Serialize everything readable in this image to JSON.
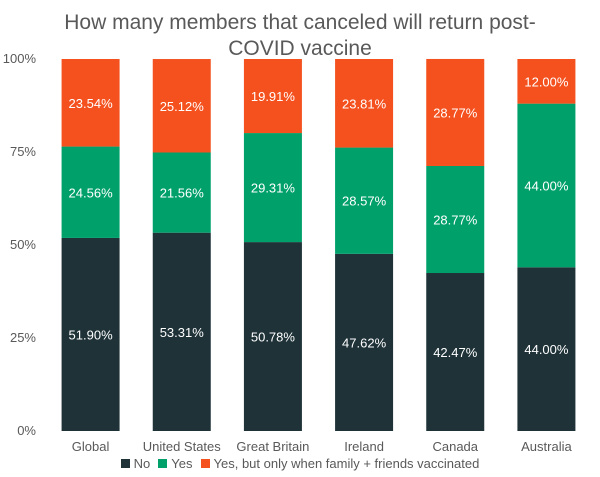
{
  "chart_data": {
    "type": "bar",
    "stacked": true,
    "title_lines": [
      "How many members that canceled will return post-",
      "COVID vaccine"
    ],
    "categories": [
      "Global",
      "United States",
      "Great Britain",
      "Ireland",
      "Canada",
      "Australia"
    ],
    "ylim": [
      0,
      100
    ],
    "yticks": [
      0,
      25,
      50,
      75,
      100
    ],
    "ytick_labels": [
      "0%",
      "25%",
      "50%",
      "75%",
      "100%"
    ],
    "grid": false,
    "legend_position": "bottom",
    "series": [
      {
        "name": "No",
        "color": "#1e3238",
        "values": [
          51.9,
          53.31,
          50.78,
          47.62,
          42.47,
          44.0
        ],
        "labels": [
          "51.90%",
          "53.31%",
          "50.78%",
          "47.62%",
          "42.47%",
          "44.00%"
        ]
      },
      {
        "name": "Yes",
        "color": "#00a06b",
        "values": [
          24.56,
          21.56,
          29.31,
          28.57,
          28.77,
          44.0
        ],
        "labels": [
          "24.56%",
          "21.56%",
          "29.31%",
          "28.57%",
          "28.77%",
          "44.00%"
        ]
      },
      {
        "name": "Yes, but only when family + friends vaccinated",
        "color": "#f4511e",
        "values": [
          23.54,
          25.12,
          19.91,
          23.81,
          28.77,
          12.0
        ],
        "labels": [
          "23.54%",
          "25.12%",
          "19.91%",
          "23.81%",
          "28.77%",
          "12.00%"
        ]
      }
    ]
  }
}
